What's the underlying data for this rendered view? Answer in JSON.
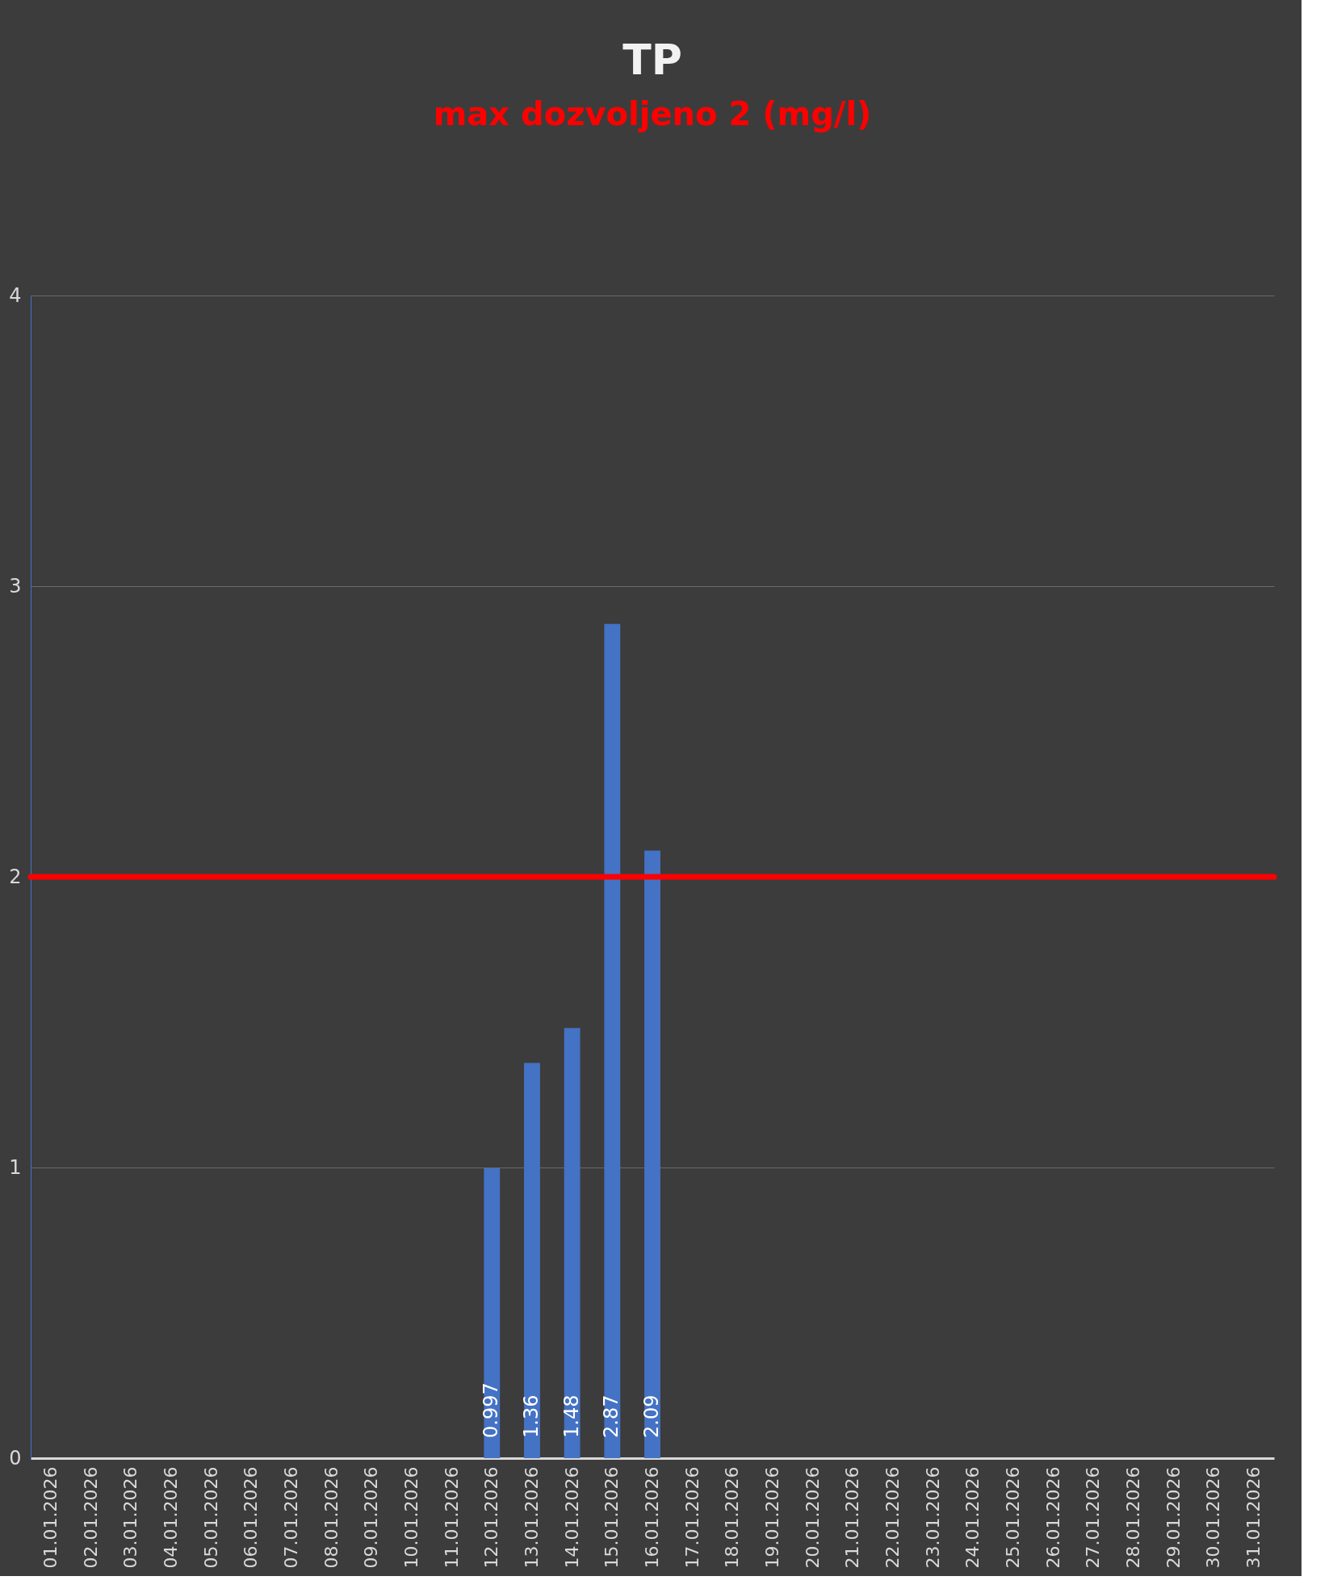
{
  "chart_data": {
    "type": "bar",
    "title": "TP",
    "subtitle": "max dozvoljeno 2 (mg/l)",
    "categories": [
      "01.01.2026",
      "02.01.2026",
      "03.01.2026",
      "04.01.2026",
      "05.01.2026",
      "06.01.2026",
      "07.01.2026",
      "08.01.2026",
      "09.01.2026",
      "10.01.2026",
      "11.01.2026",
      "12.01.2026",
      "13.01.2026",
      "14.01.2026",
      "15.01.2026",
      "16.01.2026",
      "17.01.2026",
      "18.01.2026",
      "19.01.2026",
      "20.01.2026",
      "21.01.2026",
      "22.01.2026",
      "23.01.2026",
      "24.01.2026",
      "25.01.2026",
      "26.01.2026",
      "27.01.2026",
      "28.01.2026",
      "29.01.2026",
      "30.01.2026",
      "31.01.2026"
    ],
    "values": [
      null,
      null,
      null,
      null,
      null,
      null,
      null,
      null,
      null,
      null,
      null,
      0.997,
      1.36,
      1.48,
      2.87,
      2.09,
      null,
      null,
      null,
      null,
      null,
      null,
      null,
      null,
      null,
      null,
      null,
      null,
      null,
      null,
      null
    ],
    "color": "#4472c4",
    "ylim": [
      0,
      4
    ],
    "yticks": [
      0,
      1,
      2,
      3,
      4
    ],
    "grid": "y",
    "data_labels": true,
    "ref_lines": [
      {
        "axis": "y",
        "value": 2,
        "label": null,
        "color": "#ff0000"
      }
    ]
  }
}
